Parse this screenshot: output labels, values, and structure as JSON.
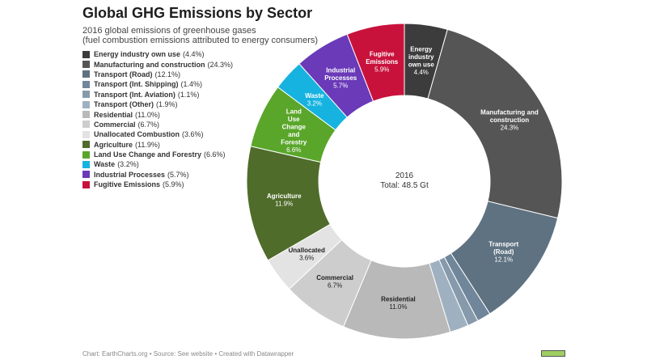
{
  "header": {
    "title": "Global GHG Emissions by Sector",
    "subtitle_line1": "2016 global emissions of greenhouse gases",
    "subtitle_line2": "(fuel combustion emissions attributed to energy consumers)"
  },
  "footer": {
    "credit": "Chart: EarthCharts.org • Source: See website • Created with Datawrapper"
  },
  "chart_data": {
    "type": "pie",
    "donut": true,
    "center_label": [
      "2016",
      "Total: 48.5 Gt"
    ],
    "legend_placement": "left",
    "segments": [
      {
        "name": "Energy industry own use",
        "value": 4.4,
        "color": "#3c3c3c",
        "slice_label": [
          "Energy",
          "industry",
          "own use",
          "4.4%"
        ],
        "label_color": "#ffffff"
      },
      {
        "name": "Manufacturing and construction",
        "value": 24.3,
        "color": "#555555",
        "slice_label": [
          "Manufacturing and",
          "construction",
          "24.3%"
        ],
        "label_color": "#ffffff"
      },
      {
        "name": "Transport (Road)",
        "value": 12.1,
        "color": "#5f7282",
        "slice_label": [
          "Transport",
          "(Road)",
          "12.1%"
        ],
        "label_color": "#ffffff"
      },
      {
        "name": "Transport (Int. Shipping)",
        "value": 1.4,
        "color": "#70869a",
        "slice_label": [],
        "label_color": "#ffffff"
      },
      {
        "name": "Transport (Int. Aviation)",
        "value": 1.1,
        "color": "#869aab",
        "slice_label": [],
        "label_color": "#ffffff"
      },
      {
        "name": "Transport (Other)",
        "value": 1.9,
        "color": "#9fb1c0",
        "slice_label": [],
        "label_color": "#ffffff"
      },
      {
        "name": "Residential",
        "value": 11.0,
        "color": "#b9b9b9",
        "slice_label": [
          "Residential",
          "11.0%"
        ],
        "label_color": "#222222"
      },
      {
        "name": "Commercial",
        "value": 6.7,
        "color": "#cdcdcd",
        "slice_label": [
          "Commercial",
          "6.7%"
        ],
        "label_color": "#222222"
      },
      {
        "name": "Unallocated Combustion",
        "value": 3.6,
        "color": "#e3e3e3",
        "slice_label": [
          "Unallocated",
          "3.6%"
        ],
        "label_color": "#222222"
      },
      {
        "name": "Agriculture",
        "value": 11.9,
        "color": "#4f6c2a",
        "slice_label": [
          "Agriculture",
          "11.9%"
        ],
        "label_color": "#ffffff"
      },
      {
        "name": "Land Use Change and Forestry",
        "value": 6.6,
        "color": "#5aa62b",
        "slice_label": [
          "Land",
          "Use",
          "Change",
          "and",
          "Forestry",
          "6.6%"
        ],
        "label_color": "#ffffff"
      },
      {
        "name": "Waste",
        "value": 3.2,
        "color": "#16b3e0",
        "slice_label": [
          "Waste",
          "3.2%"
        ],
        "label_color": "#ffffff"
      },
      {
        "name": "Industrial Processes",
        "value": 5.7,
        "color": "#6a3ab8",
        "slice_label": [
          "Industrial",
          "Processes",
          "5.7%"
        ],
        "label_color": "#ffffff"
      },
      {
        "name": "Fugitive Emissions",
        "value": 5.9,
        "color": "#c8123c",
        "slice_label": [
          "Fugitive",
          "Emissions",
          "5.9%"
        ],
        "label_color": "#ffffff"
      }
    ]
  }
}
